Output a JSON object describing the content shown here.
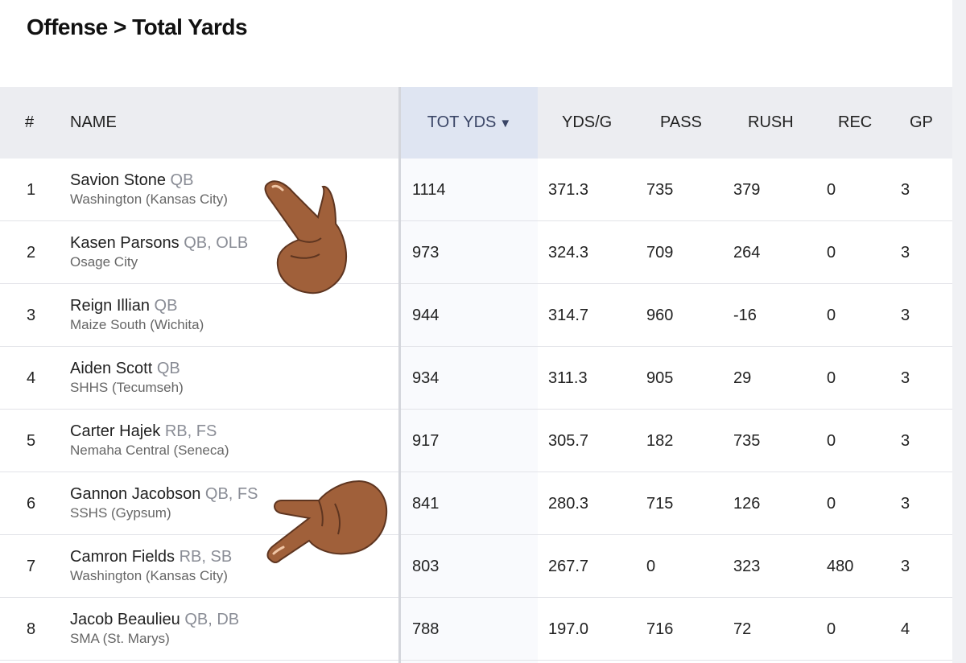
{
  "page": {
    "title": "Offense > Total Yards"
  },
  "columns": {
    "rank": "#",
    "name": "NAME",
    "tot_yds": "TOT YDS",
    "sort_indicator": "▼",
    "yds_per_game": "YDS/G",
    "pass": "PASS",
    "rush": "RUSH",
    "rec": "REC",
    "gp": "GP"
  },
  "rows": [
    {
      "rank": "1",
      "name": "Savion Stone",
      "positions": "QB",
      "school": "Washington (Kansas City)",
      "tot_yds": "1114",
      "yds_per_game": "371.3",
      "pass": "735",
      "rush": "379",
      "rec": "0",
      "gp": "3"
    },
    {
      "rank": "2",
      "name": "Kasen Parsons",
      "positions": "QB, OLB",
      "school": "Osage City",
      "tot_yds": "973",
      "yds_per_game": "324.3",
      "pass": "709",
      "rush": "264",
      "rec": "0",
      "gp": "3"
    },
    {
      "rank": "3",
      "name": "Reign Illian",
      "positions": "QB",
      "school": "Maize South (Wichita)",
      "tot_yds": "944",
      "yds_per_game": "314.7",
      "pass": "960",
      "rush": "-16",
      "rec": "0",
      "gp": "3"
    },
    {
      "rank": "4",
      "name": "Aiden Scott",
      "positions": "QB",
      "school": "SHHS (Tecumseh)",
      "tot_yds": "934",
      "yds_per_game": "311.3",
      "pass": "905",
      "rush": "29",
      "rec": "0",
      "gp": "3"
    },
    {
      "rank": "5",
      "name": "Carter Hajek",
      "positions": "RB, FS",
      "school": "Nemaha Central (Seneca)",
      "tot_yds": "917",
      "yds_per_game": "305.7",
      "pass": "182",
      "rush": "735",
      "rec": "0",
      "gp": "3"
    },
    {
      "rank": "6",
      "name": "Gannon Jacobson",
      "positions": "QB, FS",
      "school": "SSHS (Gypsum)",
      "tot_yds": "841",
      "yds_per_game": "280.3",
      "pass": "715",
      "rush": "126",
      "rec": "0",
      "gp": "3"
    },
    {
      "rank": "7",
      "name": "Camron Fields",
      "positions": "RB, SB",
      "school": "Washington (Kansas City)",
      "tot_yds": "803",
      "yds_per_game": "267.7",
      "pass": "0",
      "rush": "323",
      "rec": "480",
      "gp": "3"
    },
    {
      "rank": "8",
      "name": "Jacob Beaulieu",
      "positions": "QB, DB",
      "school": "SMA (St. Marys)",
      "tot_yds": "788",
      "yds_per_game": "197.0",
      "pass": "716",
      "rush": "72",
      "rec": "0",
      "gp": "4"
    }
  ],
  "overlays": [
    {
      "icon": "pointing-hand-emoji",
      "skin_color": "#a0603a"
    },
    {
      "icon": "pointing-hand-emoji",
      "skin_color": "#a0603a"
    }
  ]
}
